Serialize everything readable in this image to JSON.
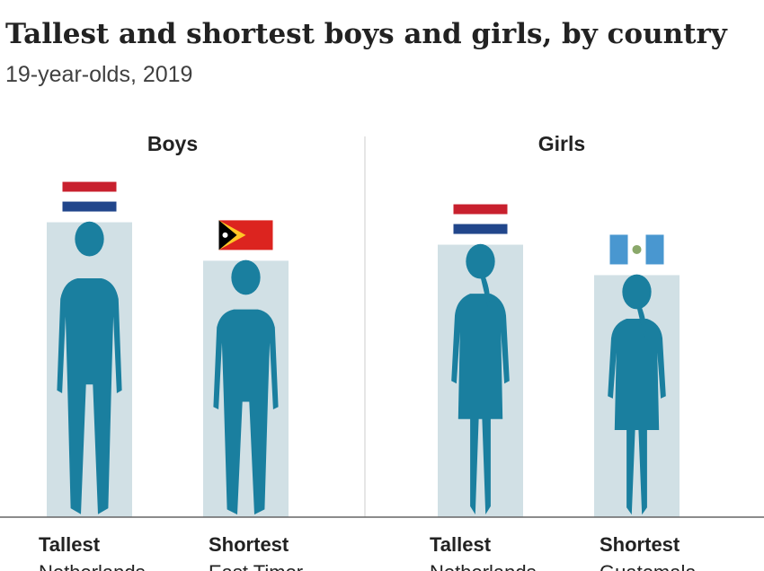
{
  "chart_data": {
    "type": "bar",
    "title": "Tallest and shortest boys and girls, by country",
    "subtitle": "19-year-olds, 2019",
    "groups": [
      {
        "name": "Boys",
        "bars": [
          {
            "label": "Tallest",
            "country": "Netherlands",
            "value": 184
          },
          {
            "label": "Shortest",
            "country": "East Timor",
            "value": 160
          }
        ]
      },
      {
        "name": "Girls",
        "bars": [
          {
            "label": "Tallest",
            "country": "Netherlands",
            "value": 170
          },
          {
            "label": "Shortest",
            "country": "Guatemala",
            "value": 151
          }
        ]
      }
    ],
    "ylim": [
      0,
      200
    ],
    "bar_color": "#d1e0e5",
    "figure_color": "#1a7f9f"
  }
}
